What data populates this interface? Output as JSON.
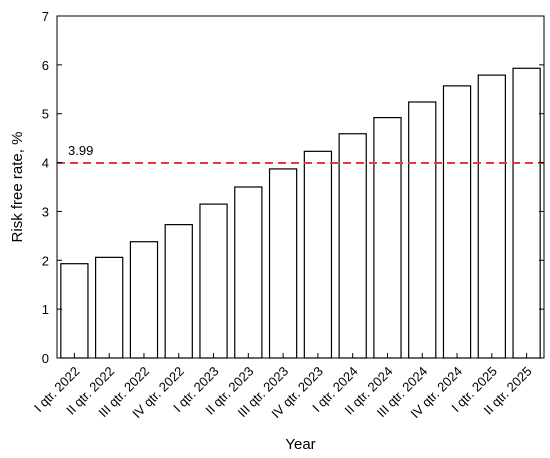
{
  "chart_data": {
    "type": "bar",
    "categories": [
      "I qtr. 2022",
      "II qtr. 2022",
      "III qtr. 2022",
      "IV qtr. 2022",
      "I qtr. 2023",
      "II qtr. 2023",
      "III qtr. 2023",
      "IV qtr. 2023",
      "I qtr. 2024",
      "II qtr. 2024",
      "III qtr. 2024",
      "IV qtr. 2024",
      "I qtr. 2025",
      "II qtr. 2025"
    ],
    "values": [
      1.93,
      2.06,
      2.38,
      2.73,
      3.15,
      3.5,
      3.87,
      4.23,
      4.59,
      4.92,
      5.24,
      5.57,
      5.79,
      5.93
    ],
    "xlabel": "Year",
    "ylabel": "Risk free rate, %",
    "ylim": [
      0,
      7
    ],
    "yticks": [
      0,
      1,
      2,
      3,
      4,
      5,
      6,
      7
    ],
    "reference_line": {
      "value": 3.99,
      "label": "3.99",
      "color": "#e8383a",
      "style": "dashed"
    },
    "bar_fill": "#ffffff",
    "bar_stroke": "#000000",
    "grid": false
  }
}
